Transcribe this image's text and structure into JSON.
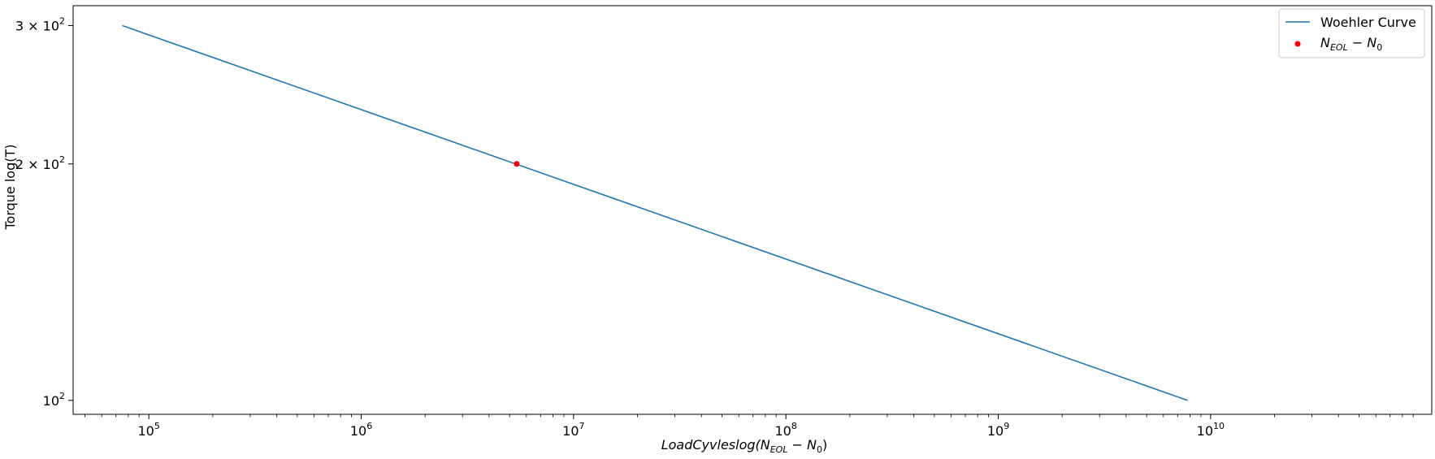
{
  "chart_data": {
    "type": "line",
    "title": "",
    "x_scale": "log",
    "y_scale": "log",
    "xlabel": {
      "italic_prefix": "LoadCyvleslog(",
      "n_eol": "N",
      "eol_sub": "EOL",
      "minus": " − ",
      "n_0": "N",
      "zero_sub": "0",
      "suffix": ")"
    },
    "ylabel": "Torque log(T)",
    "xlim": [
      44000,
      110000000000
    ],
    "ylim": [
      96,
      318
    ],
    "x_ticks": [
      {
        "value": 100000,
        "base": "10",
        "exp": "5"
      },
      {
        "value": 1000000,
        "base": "10",
        "exp": "6"
      },
      {
        "value": 10000000,
        "base": "10",
        "exp": "7"
      },
      {
        "value": 100000000,
        "base": "10",
        "exp": "8"
      },
      {
        "value": 1000000000,
        "base": "10",
        "exp": "9"
      },
      {
        "value": 10000000000,
        "base": "10",
        "exp": "10"
      }
    ],
    "y_ticks": [
      {
        "value": 100,
        "mant": "",
        "base": "10",
        "exp": "2"
      },
      {
        "value": 200,
        "mant": "2 × ",
        "base": "10",
        "exp": "2"
      },
      {
        "value": 300,
        "mant": "3 × ",
        "base": "10",
        "exp": "2"
      }
    ],
    "grid": false,
    "legend_position": "top-right",
    "series": [
      {
        "name": "Woehler Curve",
        "kind": "line",
        "color": "#1f77b4",
        "x": [
          75000,
          7800000000
        ],
        "y": [
          300,
          100
        ]
      },
      {
        "name_parts": {
          "n1": "N",
          "sub1": "EOL",
          "minus": " − ",
          "n2": "N",
          "sub2": "0"
        },
        "kind": "scatter",
        "color": "#ff0000",
        "x": [
          5400000
        ],
        "y": [
          200
        ]
      }
    ]
  }
}
